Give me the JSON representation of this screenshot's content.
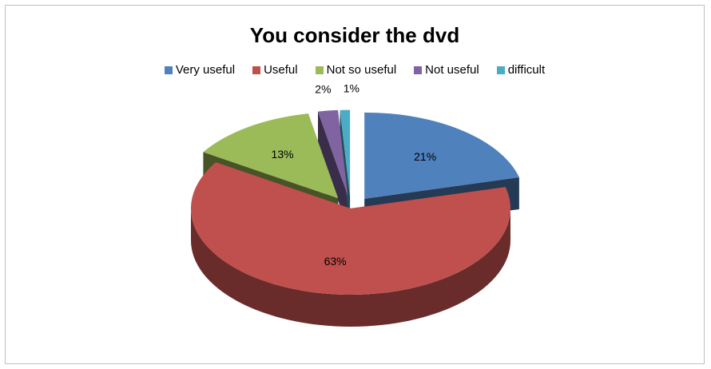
{
  "chart_data": {
    "type": "pie",
    "title": "You consider the dvd",
    "legend_position": "top",
    "slices": [
      {
        "label": "Very useful",
        "value": 21,
        "data_label": "21%",
        "color": "#4f81bd"
      },
      {
        "label": "Useful",
        "value": 63,
        "data_label": "63%",
        "color": "#c0504d"
      },
      {
        "label": "Not so useful",
        "value": 13,
        "data_label": "13%",
        "color": "#9bbb59"
      },
      {
        "label": "Not useful",
        "value": 2,
        "data_label": "2%",
        "color": "#8064a2"
      },
      {
        "label": "difficult",
        "value": 1,
        "data_label": "1%",
        "color": "#4bacc6"
      }
    ]
  }
}
